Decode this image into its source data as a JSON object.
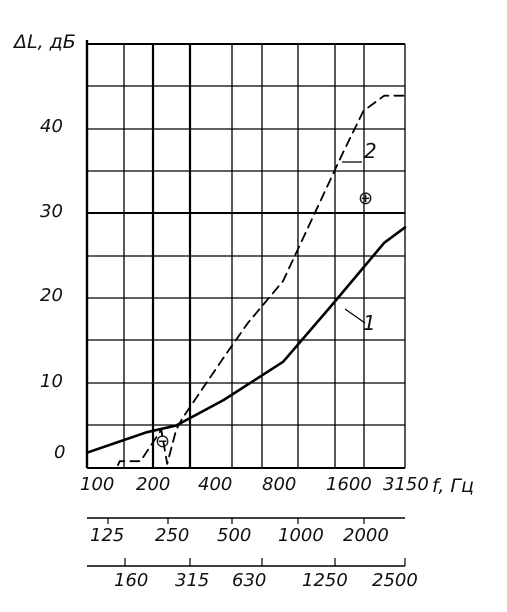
{
  "chart_data": {
    "type": "line",
    "y_axis_label": "ΔL, дБ",
    "x_axis_label": "f, Гц",
    "ylim": [
      0,
      50
    ],
    "y_ticks": [
      "0",
      "10",
      "20",
      "30",
      "40"
    ],
    "x_ticks": [
      "100",
      "200",
      "400",
      "800",
      "1600",
      "3150"
    ],
    "x_ticks_scale2": [
      "125",
      "250",
      "500",
      "1000",
      "2000"
    ],
    "x_ticks_scale3": [
      "160",
      "315",
      "630",
      "1250",
      "2500"
    ],
    "grid": true,
    "series": [
      {
        "name": "1",
        "style": "solid",
        "points": [
          [
            0.0,
            1.8
          ],
          [
            0.5,
            3.0
          ],
          [
            1.0,
            4.2
          ],
          [
            1.5,
            5.0
          ],
          [
            2.3,
            8.0
          ],
          [
            3.3,
            12.5
          ],
          [
            4.1,
            19.0
          ],
          [
            5.0,
            26.5
          ],
          [
            5.35,
            28.3
          ]
        ]
      },
      {
        "name": "2",
        "style": "dashed",
        "points": [
          [
            0.3,
            0.0
          ],
          [
            0.5,
            0.0
          ],
          [
            0.55,
            0.8
          ],
          [
            0.9,
            0.8
          ],
          [
            1.25,
            4.5
          ],
          [
            1.35,
            0.5
          ],
          [
            1.5,
            4.5
          ],
          [
            1.6,
            5.8
          ],
          [
            2.3,
            13.0
          ],
          [
            2.7,
            17.0
          ],
          [
            3.3,
            22.0
          ],
          [
            3.7,
            28.0
          ],
          [
            4.3,
            37.0
          ],
          [
            4.65,
            42.0
          ],
          [
            5.0,
            43.8
          ],
          [
            5.35,
            43.8
          ]
        ]
      }
    ],
    "annotations": [
      "⊖",
      "⊕"
    ]
  }
}
